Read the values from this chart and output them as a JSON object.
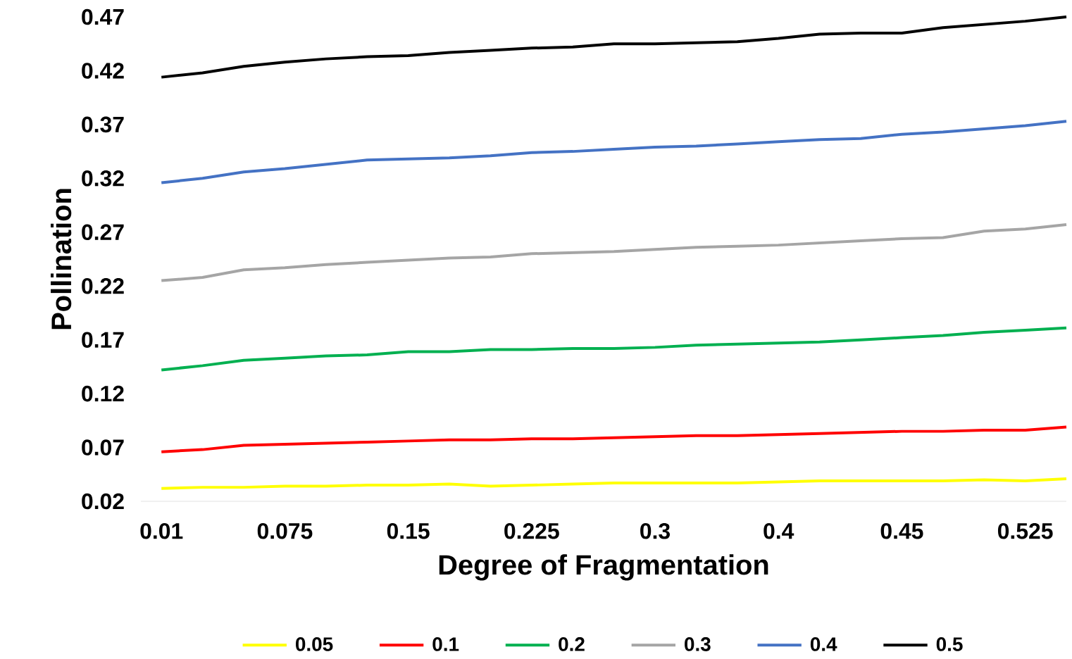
{
  "chart_data": {
    "type": "line",
    "xlabel": "Degree of Fragmentation",
    "ylabel": "Pollination",
    "categories": [
      "0.01",
      null,
      null,
      "0.075",
      null,
      null,
      "0.15",
      null,
      null,
      "0.225",
      null,
      null,
      "0.3",
      null,
      null,
      "0.4",
      null,
      null,
      "0.45",
      null,
      null,
      "0.525",
      null
    ],
    "ylim": [
      0.02,
      0.47
    ],
    "yticks": [
      0.02,
      0.07,
      0.12,
      0.17,
      0.22,
      0.27,
      0.32,
      0.37,
      0.42,
      0.47
    ],
    "grid": false,
    "legend": "bottom",
    "line_style": "solid",
    "marker": "none",
    "series": [
      {
        "name": "0.05",
        "color": "#ffff00",
        "values": [
          0.032,
          0.033,
          0.033,
          0.034,
          0.034,
          0.035,
          0.035,
          0.036,
          0.034,
          0.035,
          0.036,
          0.037,
          0.037,
          0.037,
          0.037,
          0.038,
          0.039,
          0.039,
          0.039,
          0.039,
          0.04,
          0.039,
          0.041
        ]
      },
      {
        "name": "0.1",
        "color": "#ff0000",
        "values": [
          0.066,
          0.068,
          0.072,
          0.073,
          0.074,
          0.075,
          0.076,
          0.077,
          0.077,
          0.078,
          0.078,
          0.079,
          0.08,
          0.081,
          0.081,
          0.082,
          0.083,
          0.084,
          0.085,
          0.085,
          0.086,
          0.086,
          0.089
        ]
      },
      {
        "name": "0.2",
        "color": "#00b050",
        "values": [
          0.142,
          0.146,
          0.151,
          0.153,
          0.155,
          0.156,
          0.159,
          0.159,
          0.161,
          0.161,
          0.162,
          0.162,
          0.163,
          0.165,
          0.166,
          0.167,
          0.168,
          0.17,
          0.172,
          0.174,
          0.177,
          0.179,
          0.181
        ]
      },
      {
        "name": "0.3",
        "color": "#a5a5a5",
        "values": [
          0.225,
          0.228,
          0.235,
          0.237,
          0.24,
          0.242,
          0.244,
          0.246,
          0.247,
          0.25,
          0.251,
          0.252,
          0.254,
          0.256,
          0.257,
          0.258,
          0.26,
          0.262,
          0.264,
          0.265,
          0.271,
          0.273,
          0.277
        ]
      },
      {
        "name": "0.4",
        "color": "#4472c4",
        "values": [
          0.316,
          0.32,
          0.326,
          0.329,
          0.333,
          0.337,
          0.338,
          0.339,
          0.341,
          0.344,
          0.345,
          0.347,
          0.349,
          0.35,
          0.352,
          0.354,
          0.356,
          0.357,
          0.361,
          0.363,
          0.366,
          0.369,
          0.373
        ]
      },
      {
        "name": "0.5",
        "color": "#000000",
        "values": [
          0.414,
          0.418,
          0.424,
          0.428,
          0.431,
          0.433,
          0.434,
          0.437,
          0.439,
          0.441,
          0.442,
          0.445,
          0.445,
          0.446,
          0.447,
          0.45,
          0.454,
          0.455,
          0.455,
          0.46,
          0.463,
          0.466,
          0.47
        ]
      }
    ]
  }
}
